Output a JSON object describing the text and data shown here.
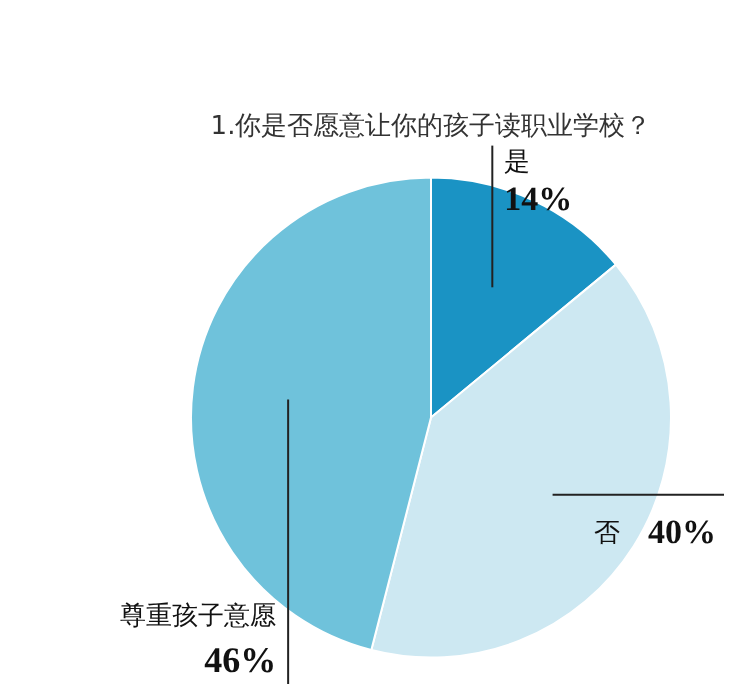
{
  "chart_data": {
    "type": "pie",
    "title": "1.你是否愿意让你的孩子读职业学校？",
    "categories": [
      "是",
      "否",
      "尊重孩子意愿"
    ],
    "values": [
      14,
      40,
      46
    ],
    "value_labels": [
      "14%",
      "40%",
      "46%"
    ],
    "colors": [
      "#1a93c4",
      "#cde8f2",
      "#6fc2db"
    ],
    "legend": false
  }
}
